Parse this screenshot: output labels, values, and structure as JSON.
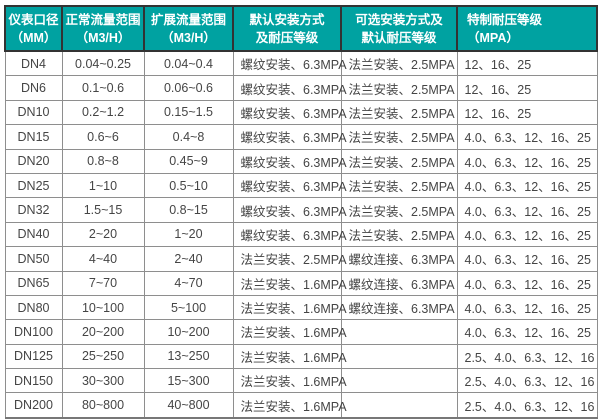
{
  "colors": {
    "header_bg": "#00a2a1",
    "header_text": "#ffffff",
    "body_text": "#454545",
    "grid_line": "#8e8e8e",
    "header_border": "#333333"
  },
  "table": {
    "headers": [
      {
        "line1": "仪表口径",
        "line2": "（MM）"
      },
      {
        "line1": "正常流量范围",
        "line2": "（M3/H）"
      },
      {
        "line1": "扩展流量范围",
        "line2": "（M3/H）"
      },
      {
        "line1": "默认安装方式",
        "line2": "及耐压等级"
      },
      {
        "line1": "可选安装方式及",
        "line2": "默认耐压等级"
      },
      {
        "line1": "特制耐压等级",
        "line2": "（MPA）"
      }
    ],
    "rows": [
      [
        "DN4",
        "0.04~0.25",
        "0.04~0.4",
        "螺纹安装、6.3MPA",
        "法兰安装、2.5MPA",
        "12、16、25"
      ],
      [
        "DN6",
        "0.1~0.6",
        "0.06~0.6",
        "螺纹安装、6.3MPA",
        "法兰安装、2.5MPA",
        "12、16、25"
      ],
      [
        "DN10",
        "0.2~1.2",
        "0.15~1.5",
        "螺纹安装、6.3MPA",
        "法兰安装、2.5MPA",
        "12、16、25"
      ],
      [
        "DN15",
        "0.6~6",
        "0.4~8",
        "螺纹安装、6.3MPA",
        "法兰安装、2.5MPA",
        "4.0、6.3、12、16、25"
      ],
      [
        "DN20",
        "0.8~8",
        "0.45~9",
        "螺纹安装、6.3MPA",
        "法兰安装、2.5MPA",
        "4.0、6.3、12、16、25"
      ],
      [
        "DN25",
        "1~10",
        "0.5~10",
        "螺纹安装、6.3MPA",
        "法兰安装、2.5MPA",
        "4.0、6.3、12、16、25"
      ],
      [
        "DN32",
        "1.5~15",
        "0.8~15",
        "螺纹安装、6.3MPA",
        "法兰安装、2.5MPA",
        "4.0、6.3、12、16、25"
      ],
      [
        "DN40",
        "2~20",
        "1~20",
        "螺纹安装、6.3MPA",
        "法兰安装、2.5MPA",
        "4.0、6.3、12、16、25"
      ],
      [
        "DN50",
        "4~40",
        "2~40",
        "法兰安装、2.5MPA",
        "螺纹连接、6.3MPA",
        "4.0、6.3、12、16、25"
      ],
      [
        "DN65",
        "7~70",
        "4~70",
        "法兰安装、1.6MPA",
        "螺纹连接、6.3MPA",
        "4.0、6.3、12、16、25"
      ],
      [
        "DN80",
        "10~100",
        "5~100",
        "法兰安装、1.6MPA",
        "螺纹连接、6.3MPA",
        "4.0、6.3、12、16、25"
      ],
      [
        "DN100",
        "20~200",
        "10~200",
        "法兰安装、1.6MPA",
        "",
        "4.0、6.3、12、16、25"
      ],
      [
        "DN125",
        "25~250",
        "13~250",
        "法兰安装、1.6MPA",
        "",
        "2.5、4.0、6.3、12、16"
      ],
      [
        "DN150",
        "30~300",
        "15~300",
        "法兰安装、1.6MPA",
        "",
        "2.5、4.0、6.3、12、16"
      ],
      [
        "DN200",
        "80~800",
        "40~800",
        "法兰安装、1.6MPA",
        "",
        "2.5、4.0、6.3、12、16"
      ]
    ]
  }
}
